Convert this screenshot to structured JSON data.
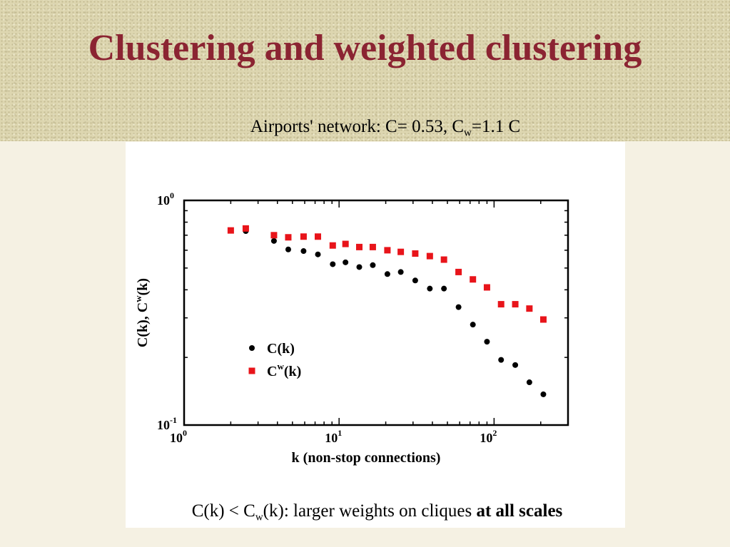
{
  "slide": {
    "title": "Clustering and weighted clustering",
    "subtitle": {
      "prefix": "Airports' network: C= 0.53, C",
      "sub": "w",
      "suffix": "=1.1 C"
    },
    "caption": {
      "part1": "C(k) < C",
      "sub": "w",
      "part2": "(k): larger weights on cliques ",
      "bold": "at all scales"
    }
  },
  "colors": {
    "title": "#8b2432",
    "cw_series": "#e8141a",
    "c_series": "#000000"
  },
  "chart_data": {
    "type": "scatter",
    "xscale": "log",
    "yscale": "log",
    "xlim": [
      1,
      300
    ],
    "ylim": [
      0.1,
      1
    ],
    "xlabel": "k  (non-stop connections)",
    "ylabel": "C(k), C^w(k)",
    "ylabel_parts": {
      "a": "C(k), C",
      "sup": "w",
      "b": "(k)"
    },
    "x_ticks": [
      {
        "value": 1,
        "base": "10",
        "exp": "0"
      },
      {
        "value": 10,
        "base": "10",
        "exp": "1"
      },
      {
        "value": 100,
        "base": "10",
        "exp": "2"
      }
    ],
    "y_ticks": [
      {
        "value": 1,
        "base": "10",
        "exp": "0"
      },
      {
        "value": 0.1,
        "base": "10",
        "exp": "-1"
      }
    ],
    "legend_position": "center-left",
    "series": [
      {
        "name": "C(k)",
        "legend": {
          "a": "C(k)"
        },
        "marker": "circle",
        "color": "#000000",
        "x": [
          2.5,
          3.8,
          4.7,
          5.9,
          7.3,
          9.1,
          11,
          13.5,
          16.5,
          20.5,
          25,
          31,
          38.5,
          47.5,
          59,
          73,
          90,
          111,
          137,
          169,
          208
        ],
        "y": [
          0.73,
          0.66,
          0.605,
          0.595,
          0.575,
          0.52,
          0.53,
          0.505,
          0.515,
          0.47,
          0.48,
          0.44,
          0.405,
          0.405,
          0.335,
          0.28,
          0.235,
          0.195,
          0.185,
          0.155,
          0.137
        ]
      },
      {
        "name": "C^w(k)",
        "legend": {
          "a": "C",
          "sup": "w",
          "b": "(k)"
        },
        "marker": "square",
        "color": "#e8141a",
        "x": [
          2,
          2.5,
          3.8,
          4.7,
          5.9,
          7.3,
          9.1,
          11,
          13.5,
          16.5,
          20.5,
          25,
          31,
          38.5,
          47.5,
          59,
          73,
          90,
          111,
          137,
          169,
          208
        ],
        "y": [
          0.735,
          0.75,
          0.7,
          0.685,
          0.69,
          0.69,
          0.63,
          0.64,
          0.62,
          0.62,
          0.6,
          0.59,
          0.58,
          0.565,
          0.545,
          0.48,
          0.445,
          0.41,
          0.345,
          0.345,
          0.33,
          0.295
        ]
      }
    ]
  }
}
